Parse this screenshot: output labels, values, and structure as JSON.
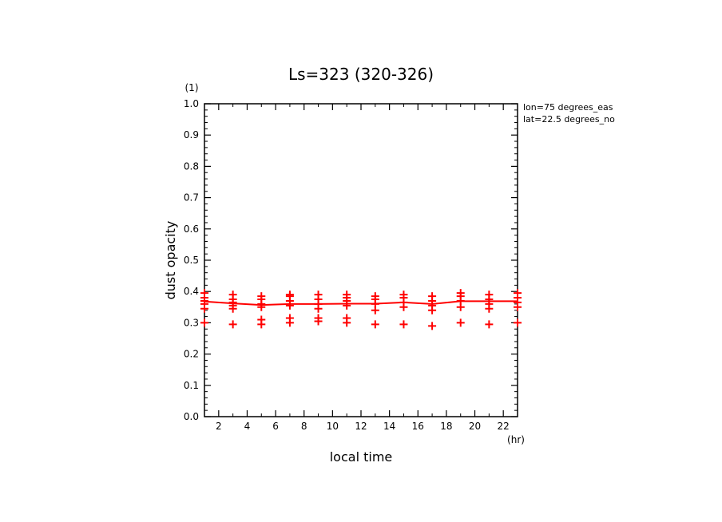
{
  "chart_data": {
    "type": "scatter",
    "title": "Ls=323 (320-326)",
    "xlabel": "local time",
    "ylabel": "dust opacity",
    "x_unit": "(hr)",
    "y_unit": "(1)",
    "xlim": [
      1,
      23
    ],
    "ylim": [
      0,
      1.0
    ],
    "xticks": [
      "2",
      "4",
      "6",
      "8",
      "10",
      "12",
      "14",
      "16",
      "18",
      "20",
      "22"
    ],
    "yticks": [
      "0.0",
      "0.1",
      "0.2",
      "0.3",
      "0.4",
      "0.5",
      "0.6",
      "0.7",
      "0.8",
      "0.9",
      "1.0"
    ],
    "annotations": [
      "lon=75 degrees_eas",
      "lat=22.5 degrees_no"
    ],
    "series": [
      {
        "values": [
          [
            1,
            0.395
          ],
          [
            1,
            0.38
          ],
          [
            1,
            0.37
          ],
          [
            1,
            0.36
          ],
          [
            1,
            0.345
          ],
          [
            1,
            0.3
          ],
          [
            3,
            0.39
          ],
          [
            3,
            0.375
          ],
          [
            3,
            0.365
          ],
          [
            3,
            0.355
          ],
          [
            3,
            0.345
          ],
          [
            3,
            0.295
          ],
          [
            5,
            0.385
          ],
          [
            5,
            0.375
          ],
          [
            5,
            0.36
          ],
          [
            5,
            0.35
          ],
          [
            5,
            0.31
          ],
          [
            5,
            0.295
          ],
          [
            7,
            0.39
          ],
          [
            7,
            0.385
          ],
          [
            7,
            0.37
          ],
          [
            7,
            0.355
          ],
          [
            7,
            0.315
          ],
          [
            7,
            0.3
          ],
          [
            9,
            0.39
          ],
          [
            9,
            0.375
          ],
          [
            9,
            0.36
          ],
          [
            9,
            0.345
          ],
          [
            9,
            0.315
          ],
          [
            9,
            0.305
          ],
          [
            11,
            0.39
          ],
          [
            11,
            0.38
          ],
          [
            11,
            0.37
          ],
          [
            11,
            0.355
          ],
          [
            11,
            0.315
          ],
          [
            11,
            0.3
          ],
          [
            13,
            0.385
          ],
          [
            13,
            0.375
          ],
          [
            13,
            0.36
          ],
          [
            13,
            0.34
          ],
          [
            13,
            0.295
          ],
          [
            15,
            0.39
          ],
          [
            15,
            0.38
          ],
          [
            15,
            0.365
          ],
          [
            15,
            0.35
          ],
          [
            15,
            0.295
          ],
          [
            17,
            0.385
          ],
          [
            17,
            0.37
          ],
          [
            17,
            0.355
          ],
          [
            17,
            0.34
          ],
          [
            17,
            0.29
          ],
          [
            19,
            0.395
          ],
          [
            19,
            0.385
          ],
          [
            19,
            0.37
          ],
          [
            19,
            0.35
          ],
          [
            19,
            0.3
          ],
          [
            21,
            0.39
          ],
          [
            21,
            0.375
          ],
          [
            21,
            0.36
          ],
          [
            21,
            0.345
          ],
          [
            21,
            0.295
          ],
          [
            23,
            0.395
          ],
          [
            23,
            0.38
          ],
          [
            23,
            0.365
          ],
          [
            23,
            0.35
          ],
          [
            23,
            0.3
          ]
        ]
      },
      {
        "x": [
          1,
          3,
          5,
          7,
          9,
          11,
          13,
          15,
          17,
          19,
          21,
          23
        ],
        "y": [
          0.368,
          0.362,
          0.357,
          0.36,
          0.36,
          0.361,
          0.361,
          0.365,
          0.36,
          0.369,
          0.369,
          0.369
        ]
      }
    ],
    "color": "#ff0000",
    "grid": false
  }
}
